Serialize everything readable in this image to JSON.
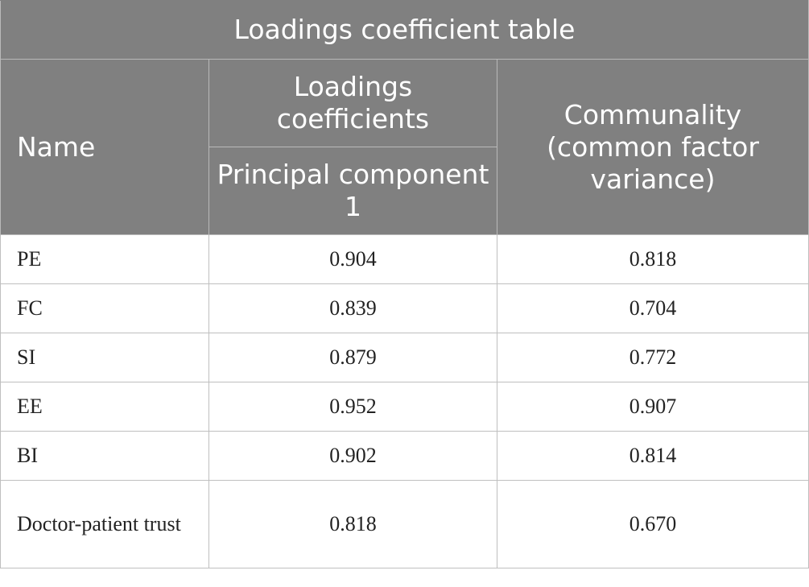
{
  "table": {
    "title": "Loadings coefficient table",
    "headers": {
      "name": "Name",
      "loadings": "Loadings coefficients",
      "principal_component": "Principal component 1",
      "communality": "Communality (common factor variance)"
    },
    "rows": [
      {
        "name": "PE",
        "loading": "0.904",
        "communality": "0.818"
      },
      {
        "name": "FC",
        "loading": "0.839",
        "communality": "0.704"
      },
      {
        "name": "SI",
        "loading": "0.879",
        "communality": "0.772"
      },
      {
        "name": "EE",
        "loading": "0.952",
        "communality": "0.907"
      },
      {
        "name": "BI",
        "loading": "0.902",
        "communality": "0.814"
      },
      {
        "name": "Doctor-patient trust",
        "loading": "0.818",
        "communality": "0.670"
      }
    ]
  }
}
